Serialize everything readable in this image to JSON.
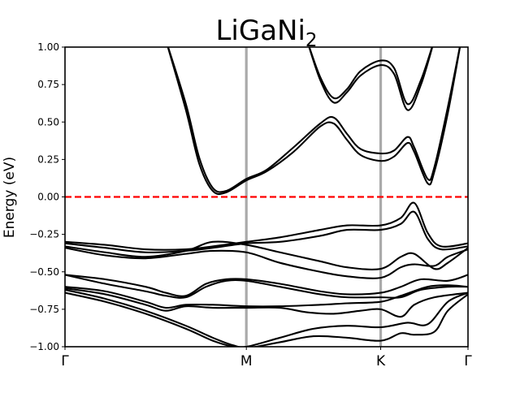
{
  "chart_data": {
    "type": "line",
    "title": "LiGaNi",
    "title_subscript": "2",
    "xlabel": "",
    "ylabel": "Energy (eV)",
    "ylim": [
      -1.0,
      1.0
    ],
    "xlim": [
      0,
      3
    ],
    "yticks": [
      -1.0,
      -0.75,
      -0.5,
      -0.25,
      0.0,
      0.25,
      0.5,
      0.75,
      1.0
    ],
    "ytick_labels": [
      "−1.00",
      "−0.75",
      "−0.50",
      "−0.25",
      "0.00",
      "0.25",
      "0.50",
      "0.75",
      "1.00"
    ],
    "kpoints": [
      {
        "label": "Γ",
        "x": 0
      },
      {
        "label": "M",
        "x": 1.35
      },
      {
        "label": "K",
        "x": 2.35
      },
      {
        "label": "Γ",
        "x": 3
      }
    ],
    "fermi_level": 0.0,
    "colors": {
      "bands": "#000000",
      "fermi": "#ff0000",
      "kline": "#aaaaaa"
    },
    "series": [
      {
        "values": [
          [
            0.75,
            1.05
          ],
          [
            0.9,
            0.62
          ],
          [
            1.0,
            0.26
          ],
          [
            1.1,
            0.06
          ],
          [
            1.2,
            0.04
          ],
          [
            1.35,
            0.12
          ],
          [
            1.5,
            0.18
          ],
          [
            1.7,
            0.33
          ],
          [
            1.9,
            0.49
          ],
          [
            2.0,
            0.53
          ],
          [
            2.1,
            0.42
          ],
          [
            2.2,
            0.32
          ],
          [
            2.35,
            0.29
          ],
          [
            2.45,
            0.31
          ],
          [
            2.55,
            0.4
          ],
          [
            2.6,
            0.33
          ],
          [
            2.7,
            0.12
          ],
          [
            2.75,
            0.2
          ],
          [
            2.85,
            0.6
          ],
          [
            2.95,
            1.05
          ]
        ]
      },
      {
        "values": [
          [
            0.75,
            1.05
          ],
          [
            0.9,
            0.58
          ],
          [
            1.0,
            0.22
          ],
          [
            1.1,
            0.04
          ],
          [
            1.2,
            0.03
          ],
          [
            1.35,
            0.11
          ],
          [
            1.5,
            0.17
          ],
          [
            1.7,
            0.3
          ],
          [
            1.9,
            0.47
          ],
          [
            2.0,
            0.49
          ],
          [
            2.1,
            0.38
          ],
          [
            2.2,
            0.28
          ],
          [
            2.35,
            0.24
          ],
          [
            2.45,
            0.27
          ],
          [
            2.55,
            0.36
          ],
          [
            2.6,
            0.3
          ],
          [
            2.7,
            0.09
          ],
          [
            2.75,
            0.17
          ],
          [
            2.85,
            0.56
          ],
          [
            2.95,
            1.05
          ]
        ]
      },
      {
        "values": [
          [
            1.8,
            1.05
          ],
          [
            1.9,
            0.8
          ],
          [
            2.0,
            0.66
          ],
          [
            2.1,
            0.72
          ],
          [
            2.2,
            0.84
          ],
          [
            2.35,
            0.91
          ],
          [
            2.45,
            0.86
          ],
          [
            2.55,
            0.62
          ],
          [
            2.65,
            0.78
          ],
          [
            2.75,
            1.05
          ]
        ]
      },
      {
        "values": [
          [
            1.8,
            1.05
          ],
          [
            1.9,
            0.78
          ],
          [
            2.0,
            0.63
          ],
          [
            2.1,
            0.7
          ],
          [
            2.2,
            0.81
          ],
          [
            2.35,
            0.88
          ],
          [
            2.45,
            0.82
          ],
          [
            2.55,
            0.58
          ],
          [
            2.65,
            0.75
          ],
          [
            2.75,
            1.05
          ]
        ]
      },
      {
        "values": [
          [
            0,
            -0.3
          ],
          [
            0.3,
            -0.32
          ],
          [
            0.6,
            -0.35
          ],
          [
            0.9,
            -0.35
          ],
          [
            1.1,
            -0.33
          ],
          [
            1.35,
            -0.3
          ],
          [
            1.6,
            -0.27
          ],
          [
            1.9,
            -0.22
          ],
          [
            2.1,
            -0.19
          ],
          [
            2.35,
            -0.19
          ],
          [
            2.5,
            -0.14
          ],
          [
            2.6,
            -0.04
          ],
          [
            2.7,
            -0.24
          ],
          [
            2.8,
            -0.33
          ],
          [
            3,
            -0.31
          ]
        ]
      },
      {
        "values": [
          [
            0,
            -0.31
          ],
          [
            0.3,
            -0.34
          ],
          [
            0.6,
            -0.37
          ],
          [
            0.9,
            -0.36
          ],
          [
            1.1,
            -0.34
          ],
          [
            1.35,
            -0.31
          ],
          [
            1.6,
            -0.3
          ],
          [
            1.9,
            -0.26
          ],
          [
            2.1,
            -0.22
          ],
          [
            2.35,
            -0.22
          ],
          [
            2.5,
            -0.18
          ],
          [
            2.6,
            -0.1
          ],
          [
            2.7,
            -0.28
          ],
          [
            2.8,
            -0.35
          ],
          [
            3,
            -0.33
          ]
        ]
      },
      {
        "values": [
          [
            0,
            -0.33
          ],
          [
            0.3,
            -0.37
          ],
          [
            0.6,
            -0.4
          ],
          [
            0.9,
            -0.36
          ],
          [
            1.1,
            -0.3
          ],
          [
            1.35,
            -0.32
          ],
          [
            1.6,
            -0.37
          ],
          [
            1.9,
            -0.43
          ],
          [
            2.1,
            -0.47
          ],
          [
            2.35,
            -0.48
          ],
          [
            2.5,
            -0.4
          ],
          [
            2.6,
            -0.38
          ],
          [
            2.75,
            -0.48
          ],
          [
            2.85,
            -0.44
          ],
          [
            3,
            -0.34
          ]
        ]
      },
      {
        "values": [
          [
            0,
            -0.34
          ],
          [
            0.3,
            -0.39
          ],
          [
            0.6,
            -0.41
          ],
          [
            0.9,
            -0.38
          ],
          [
            1.1,
            -0.36
          ],
          [
            1.35,
            -0.37
          ],
          [
            1.6,
            -0.44
          ],
          [
            1.9,
            -0.5
          ],
          [
            2.1,
            -0.53
          ],
          [
            2.35,
            -0.54
          ],
          [
            2.5,
            -0.47
          ],
          [
            2.6,
            -0.45
          ],
          [
            2.75,
            -0.46
          ],
          [
            2.85,
            -0.4
          ],
          [
            3,
            -0.35
          ]
        ]
      },
      {
        "values": [
          [
            0,
            -0.52
          ],
          [
            0.3,
            -0.55
          ],
          [
            0.6,
            -0.6
          ],
          [
            0.75,
            -0.64
          ],
          [
            0.9,
            -0.66
          ],
          [
            1.05,
            -0.58
          ],
          [
            1.2,
            -0.55
          ],
          [
            1.35,
            -0.55
          ],
          [
            1.6,
            -0.58
          ],
          [
            1.9,
            -0.63
          ],
          [
            2.1,
            -0.65
          ],
          [
            2.35,
            -0.64
          ],
          [
            2.5,
            -0.6
          ],
          [
            2.65,
            -0.55
          ],
          [
            2.85,
            -0.56
          ],
          [
            3,
            -0.52
          ]
        ]
      },
      {
        "values": [
          [
            0,
            -0.52
          ],
          [
            0.3,
            -0.58
          ],
          [
            0.6,
            -0.63
          ],
          [
            0.75,
            -0.66
          ],
          [
            0.9,
            -0.67
          ],
          [
            1.05,
            -0.6
          ],
          [
            1.2,
            -0.56
          ],
          [
            1.35,
            -0.56
          ],
          [
            1.6,
            -0.6
          ],
          [
            1.9,
            -0.65
          ],
          [
            2.1,
            -0.67
          ],
          [
            2.35,
            -0.67
          ],
          [
            2.5,
            -0.67
          ],
          [
            2.65,
            -0.62
          ],
          [
            2.85,
            -0.6
          ],
          [
            3,
            -0.6
          ]
        ]
      },
      {
        "values": [
          [
            0,
            -0.6
          ],
          [
            0.3,
            -0.63
          ],
          [
            0.6,
            -0.7
          ],
          [
            0.75,
            -0.74
          ],
          [
            0.9,
            -0.72
          ],
          [
            1.1,
            -0.72
          ],
          [
            1.35,
            -0.73
          ],
          [
            1.6,
            -0.73
          ],
          [
            1.9,
            -0.72
          ],
          [
            2.1,
            -0.71
          ],
          [
            2.35,
            -0.7
          ],
          [
            2.5,
            -0.66
          ],
          [
            2.7,
            -0.6
          ],
          [
            2.85,
            -0.59
          ],
          [
            3,
            -0.6
          ]
        ]
      },
      {
        "values": [
          [
            0,
            -0.61
          ],
          [
            0.3,
            -0.65
          ],
          [
            0.6,
            -0.72
          ],
          [
            0.75,
            -0.76
          ],
          [
            0.9,
            -0.73
          ],
          [
            1.1,
            -0.74
          ],
          [
            1.35,
            -0.74
          ],
          [
            1.6,
            -0.74
          ],
          [
            1.8,
            -0.77
          ],
          [
            2.0,
            -0.78
          ],
          [
            2.2,
            -0.76
          ],
          [
            2.35,
            -0.75
          ],
          [
            2.5,
            -0.8
          ],
          [
            2.6,
            -0.72
          ],
          [
            2.75,
            -0.67
          ],
          [
            3,
            -0.64
          ]
        ]
      },
      {
        "values": [
          [
            0,
            -0.62
          ],
          [
            0.3,
            -0.68
          ],
          [
            0.6,
            -0.76
          ],
          [
            0.9,
            -0.86
          ],
          [
            1.1,
            -0.94
          ],
          [
            1.25,
            -0.99
          ],
          [
            1.35,
            -1.0
          ],
          [
            1.6,
            -0.94
          ],
          [
            1.85,
            -0.88
          ],
          [
            2.1,
            -0.86
          ],
          [
            2.35,
            -0.87
          ],
          [
            2.55,
            -0.84
          ],
          [
            2.7,
            -0.85
          ],
          [
            2.85,
            -0.7
          ],
          [
            3,
            -0.64
          ]
        ]
      },
      {
        "values": [
          [
            0,
            -0.64
          ],
          [
            0.3,
            -0.7
          ],
          [
            0.6,
            -0.78
          ],
          [
            0.9,
            -0.88
          ],
          [
            1.1,
            -0.96
          ],
          [
            1.25,
            -1.0
          ],
          [
            1.35,
            -1.01
          ],
          [
            1.6,
            -0.97
          ],
          [
            1.85,
            -0.93
          ],
          [
            2.1,
            -0.94
          ],
          [
            2.35,
            -0.96
          ],
          [
            2.5,
            -0.91
          ],
          [
            2.6,
            -0.92
          ],
          [
            2.75,
            -0.9
          ],
          [
            2.85,
            -0.76
          ],
          [
            3,
            -0.65
          ]
        ]
      }
    ]
  }
}
